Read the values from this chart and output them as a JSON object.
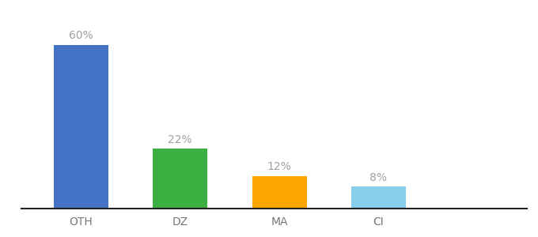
{
  "categories": [
    "OTH",
    "DZ",
    "MA",
    "CI"
  ],
  "values": [
    60,
    22,
    12,
    8
  ],
  "labels": [
    "60%",
    "22%",
    "12%",
    "8%"
  ],
  "bar_colors": [
    "#4472C4",
    "#3CB043",
    "#FFA500",
    "#87CEEB"
  ],
  "background_color": "#ffffff",
  "label_color": "#a0a0a0",
  "label_fontsize": 10,
  "tick_fontsize": 10,
  "tick_color": "#777777",
  "ylim": [
    0,
    72
  ],
  "bar_width": 0.55,
  "x_positions": [
    0,
    1,
    2,
    3
  ],
  "xlim": [
    -0.6,
    4.5
  ],
  "bottom_spine_color": "#222222",
  "bottom_spine_linewidth": 1.5
}
